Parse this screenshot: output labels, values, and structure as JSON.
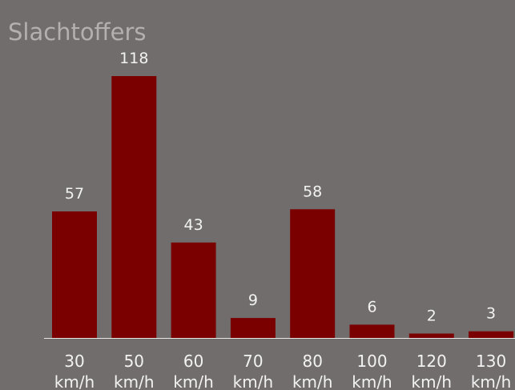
{
  "chart_data": {
    "type": "bar",
    "title": "Slachtoffers",
    "categories": [
      [
        "30",
        "km/h"
      ],
      [
        "50",
        "km/h"
      ],
      [
        "60",
        "km/h"
      ],
      [
        "70",
        "km/h"
      ],
      [
        "80",
        "km/h"
      ],
      [
        "100",
        "km/h"
      ],
      [
        "120",
        "km/h"
      ],
      [
        "130",
        "km/h"
      ]
    ],
    "values": [
      57,
      118,
      43,
      9,
      58,
      6,
      2,
      3
    ],
    "xlabel": "",
    "ylabel": "",
    "ylim": [
      0,
      118
    ],
    "grid": false,
    "legend": "none",
    "colors": {
      "background": "#726d6d",
      "bar": "#7a0000",
      "text": "#f2f2f2",
      "title": "#b4b0b0",
      "axis": "#e6e6e6"
    }
  }
}
